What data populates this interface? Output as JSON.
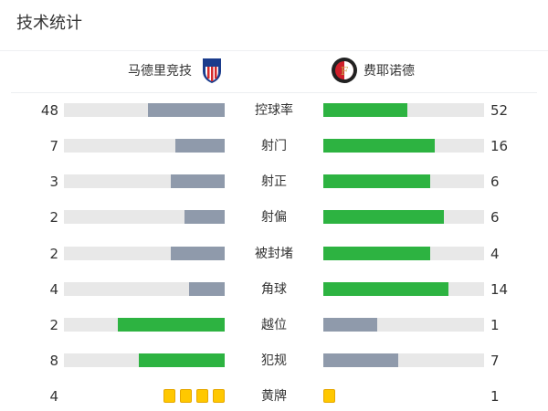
{
  "title": "技术统计",
  "home": {
    "name": "马德里竞技",
    "crest": "atletico-madrid-crest"
  },
  "away": {
    "name": "费耶诺德",
    "crest": "feyenoord-crest"
  },
  "colors": {
    "leader": "#2db341",
    "trailer": "#8f9aab",
    "track": "#e8e8e8",
    "yellow": "#ffc800"
  },
  "stats": [
    {
      "label": "控球率",
      "home": 48,
      "away": 52
    },
    {
      "label": "射门",
      "home": 7,
      "away": 16
    },
    {
      "label": "射正",
      "home": 3,
      "away": 6
    },
    {
      "label": "射偏",
      "home": 2,
      "away": 6
    },
    {
      "label": "被封堵",
      "home": 2,
      "away": 4
    },
    {
      "label": "角球",
      "home": 4,
      "away": 14
    },
    {
      "label": "越位",
      "home": 2,
      "away": 1
    },
    {
      "label": "犯规",
      "home": 8,
      "away": 7
    },
    {
      "label": "黄牌",
      "home": 4,
      "away": 1,
      "type": "cards"
    }
  ]
}
